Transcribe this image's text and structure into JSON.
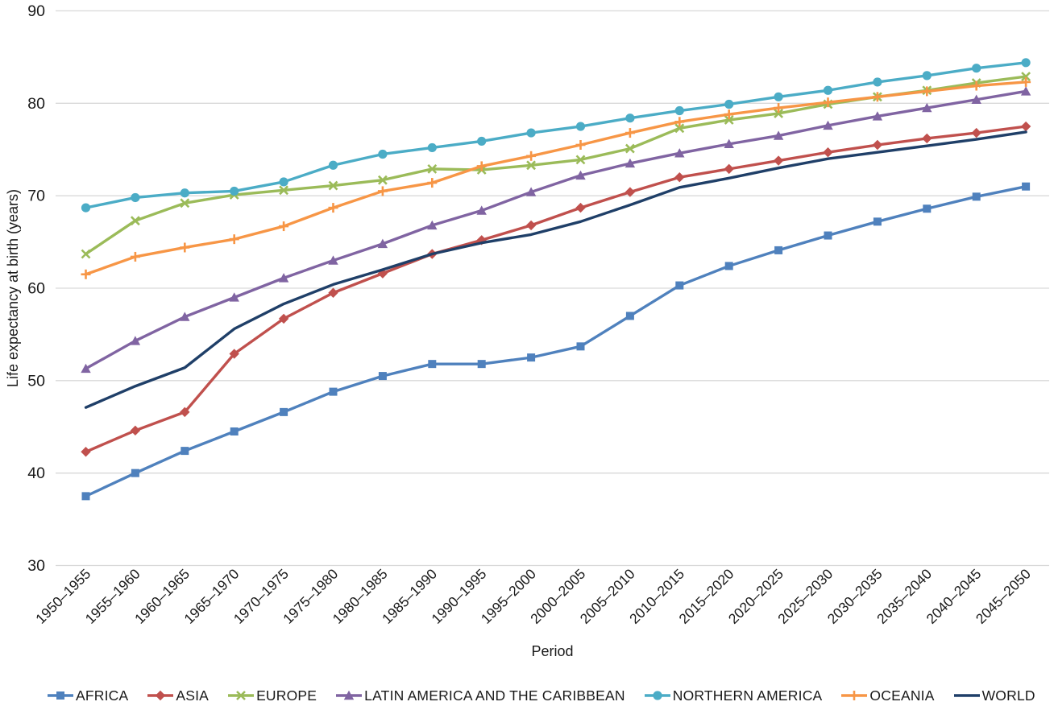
{
  "figure": {
    "title": "",
    "x_axis_title": "Period",
    "y_axis_title": "Life expectancy at birth (years)"
  },
  "colors": {
    "background": "#ffffff",
    "gridline": "#d9d9d9",
    "axis_text": "#1a1a1a"
  },
  "chart_data": {
    "type": "line",
    "title": "",
    "xlabel": "Period",
    "ylabel": "Life expectancy at birth (years)",
    "ylim": [
      30,
      90
    ],
    "yticks": [
      30,
      40,
      50,
      60,
      70,
      80,
      90
    ],
    "grid": true,
    "legend_position": "bottom",
    "categories": [
      "1950–1955",
      "1955–1960",
      "1960–1965",
      "1965–1970",
      "1970–1975",
      "1975–1980",
      "1980–1985",
      "1985–1990",
      "1990–1995",
      "1995–2000",
      "2000–2005",
      "2005–2010",
      "2010–2015",
      "2015–2020",
      "2020–2025",
      "2025–2030",
      "2030–2035",
      "2035–2040",
      "2040–2045",
      "2045–2050"
    ],
    "series": [
      {
        "name": "AFRICA",
        "color": "#4F81BD",
        "marker": "square",
        "values": [
          37.5,
          40.0,
          42.4,
          44.5,
          46.6,
          48.8,
          50.5,
          51.8,
          51.8,
          52.5,
          53.7,
          57.0,
          60.3,
          62.4,
          64.1,
          65.7,
          67.2,
          68.6,
          69.9,
          71.0
        ]
      },
      {
        "name": "ASIA",
        "color": "#C0504D",
        "marker": "diamond",
        "values": [
          42.3,
          44.6,
          46.6,
          52.9,
          56.7,
          59.5,
          61.6,
          63.7,
          65.2,
          66.8,
          68.7,
          70.4,
          72.0,
          72.9,
          73.8,
          74.7,
          75.5,
          76.2,
          76.8,
          77.5
        ]
      },
      {
        "name": "EUROPE",
        "color": "#9BBB59",
        "marker": "x",
        "values": [
          63.7,
          67.3,
          69.2,
          70.1,
          70.6,
          71.1,
          71.7,
          72.9,
          72.8,
          73.3,
          73.9,
          75.1,
          77.3,
          78.2,
          78.9,
          79.9,
          80.7,
          81.4,
          82.2,
          82.9
        ]
      },
      {
        "name": "LATIN AMERICA AND THE CARIBBEAN",
        "color": "#8064A2",
        "marker": "triangle",
        "values": [
          51.3,
          54.3,
          56.9,
          59.0,
          61.1,
          63.0,
          64.8,
          66.8,
          68.4,
          70.4,
          72.2,
          73.5,
          74.6,
          75.6,
          76.5,
          77.6,
          78.6,
          79.5,
          80.4,
          81.3
        ]
      },
      {
        "name": "NORTHERN AMERICA",
        "color": "#4BACC6",
        "marker": "circle",
        "values": [
          68.7,
          69.8,
          70.3,
          70.5,
          71.5,
          73.3,
          74.5,
          75.2,
          75.9,
          76.8,
          77.5,
          78.4,
          79.2,
          79.9,
          80.7,
          81.4,
          82.3,
          83.0,
          83.8,
          84.4
        ]
      },
      {
        "name": "OCEANIA",
        "color": "#F79646",
        "marker": "plus",
        "values": [
          61.5,
          63.4,
          64.4,
          65.3,
          66.7,
          68.7,
          70.5,
          71.4,
          73.2,
          74.3,
          75.5,
          76.8,
          78.0,
          78.8,
          79.5,
          80.1,
          80.7,
          81.3,
          81.9,
          82.3
        ]
      },
      {
        "name": "WORLD",
        "color": "#1F3F68",
        "marker": "none",
        "values": [
          47.1,
          49.4,
          51.4,
          55.6,
          58.3,
          60.4,
          62.0,
          63.7,
          64.9,
          65.8,
          67.2,
          69.0,
          70.9,
          71.9,
          73.0,
          74.0,
          74.7,
          75.4,
          76.1,
          76.9
        ]
      }
    ]
  }
}
